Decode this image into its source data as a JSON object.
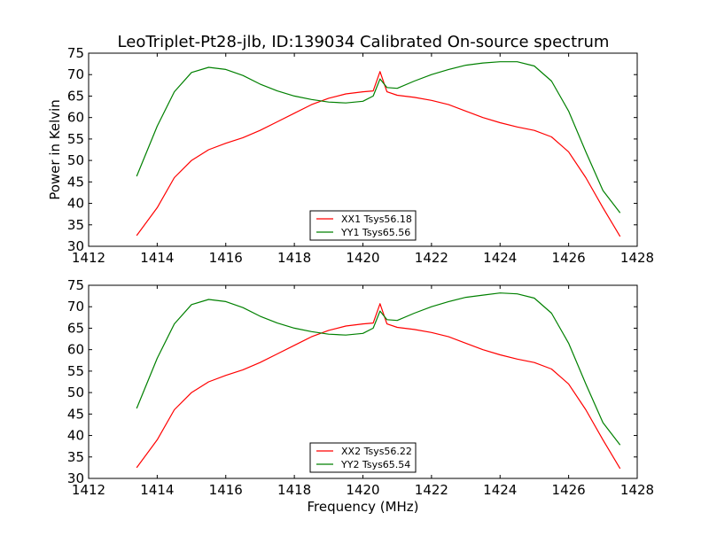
{
  "title": "LeoTriplet-Pt28-jlb, ID:139034 Calibrated On-source spectrum",
  "chart_data": [
    {
      "type": "line",
      "ylabel": "Power in Kelvin",
      "xlabel": "",
      "xlim": [
        1412,
        1428
      ],
      "ylim": [
        30,
        75
      ],
      "xticks": [
        1412,
        1414,
        1416,
        1418,
        1420,
        1422,
        1424,
        1426,
        1428
      ],
      "yticks": [
        30,
        35,
        40,
        45,
        50,
        55,
        60,
        65,
        70,
        75
      ],
      "legend_placement": "lower-center",
      "x": [
        1413.4,
        1414,
        1414.5,
        1415,
        1415.5,
        1416,
        1416.5,
        1417,
        1417.5,
        1418,
        1418.5,
        1419,
        1419.5,
        1420,
        1420.3,
        1420.5,
        1420.7,
        1421,
        1421.5,
        1422,
        1422.5,
        1423,
        1423.5,
        1424,
        1424.5,
        1425,
        1425.5,
        1426,
        1426.5,
        1427,
        1427.5
      ],
      "series": [
        {
          "name": "XX1 Tsys56.18",
          "color": "#ff0000",
          "values": [
            32.5,
            39,
            46,
            50,
            52.5,
            54,
            55.3,
            57,
            59,
            61,
            63,
            64.5,
            65.5,
            66,
            66.2,
            70.7,
            66,
            65.2,
            64.7,
            64,
            63,
            61.5,
            60,
            58.8,
            57.8,
            57,
            55.5,
            52,
            46,
            39,
            32.3
          ]
        },
        {
          "name": "YY1 Tsys65.56",
          "color": "#008000",
          "values": [
            46.3,
            58,
            66,
            70.5,
            71.7,
            71.2,
            69.8,
            67.8,
            66.2,
            65,
            64.2,
            63.6,
            63.4,
            63.8,
            65,
            69,
            67,
            66.8,
            68.5,
            70,
            71.2,
            72.2,
            72.7,
            73,
            73,
            72,
            68.5,
            61.5,
            52,
            43,
            37.8
          ]
        }
      ]
    },
    {
      "type": "line",
      "ylabel": "",
      "xlabel": "Frequency (MHz)",
      "xlim": [
        1412,
        1428
      ],
      "ylim": [
        30,
        75
      ],
      "xticks": [
        1412,
        1414,
        1416,
        1418,
        1420,
        1422,
        1424,
        1426,
        1428
      ],
      "yticks": [
        30,
        35,
        40,
        45,
        50,
        55,
        60,
        65,
        70,
        75
      ],
      "legend_placement": "lower-center",
      "x": [
        1413.4,
        1414,
        1414.5,
        1415,
        1415.5,
        1416,
        1416.5,
        1417,
        1417.5,
        1418,
        1418.5,
        1419,
        1419.5,
        1420,
        1420.3,
        1420.5,
        1420.7,
        1421,
        1421.5,
        1422,
        1422.5,
        1423,
        1423.5,
        1424,
        1424.5,
        1425,
        1425.5,
        1426,
        1426.5,
        1427,
        1427.5
      ],
      "series": [
        {
          "name": "XX2 Tsys56.22",
          "color": "#ff0000",
          "values": [
            32.5,
            39,
            46,
            50,
            52.5,
            54,
            55.3,
            57,
            59,
            61,
            63,
            64.5,
            65.5,
            66,
            66.2,
            70.7,
            66,
            65.2,
            64.7,
            64,
            63,
            61.5,
            60,
            58.8,
            57.8,
            57,
            55.5,
            52,
            46,
            39,
            32.3
          ]
        },
        {
          "name": "YY2 Tsys65.54",
          "color": "#008000",
          "values": [
            46.3,
            58,
            66,
            70.5,
            71.7,
            71.2,
            69.8,
            67.8,
            66.2,
            65,
            64.2,
            63.6,
            63.4,
            63.8,
            65,
            69,
            67,
            66.8,
            68.5,
            70,
            71.2,
            72.2,
            72.7,
            73.2,
            73,
            72,
            68.5,
            61.5,
            52,
            43,
            37.8
          ]
        }
      ]
    }
  ]
}
